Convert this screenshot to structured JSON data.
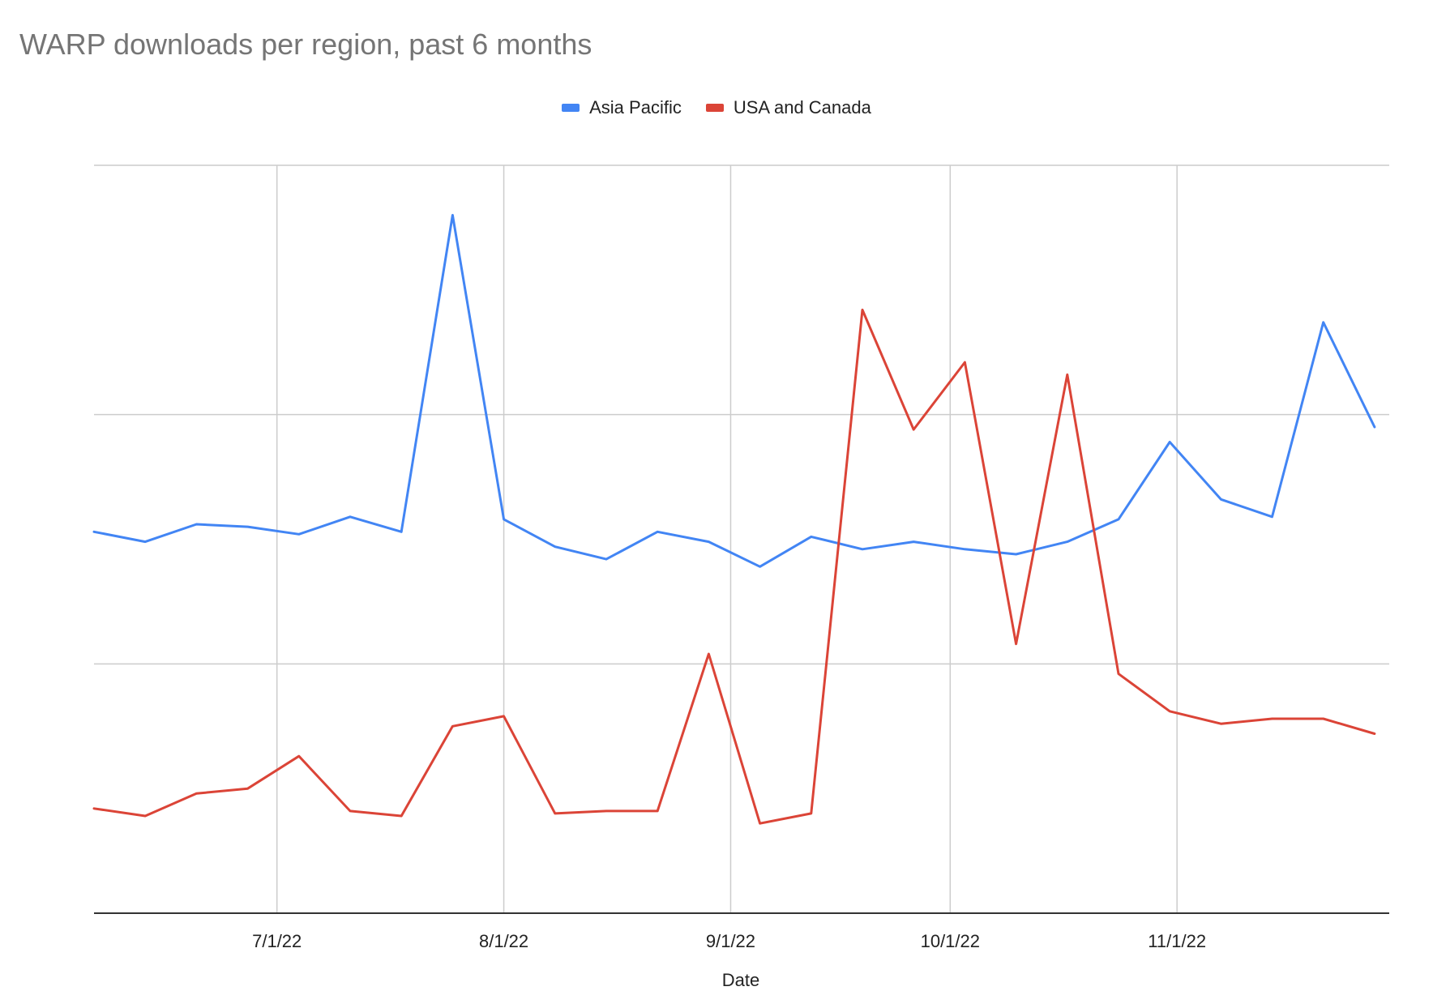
{
  "chart_data": {
    "type": "line",
    "title": "WARP downloads per region, past 6 months",
    "xlabel": "Date",
    "ylabel": "",
    "xlim": [
      "2022-06-06",
      "2022-11-30"
    ],
    "ylim": [
      0,
      3
    ],
    "y_gridlines": [
      1,
      2,
      3
    ],
    "y_tick_labels_shown": false,
    "x_ticks": [
      {
        "date": "2022-07-01",
        "label": "7/1/22"
      },
      {
        "date": "2022-08-01",
        "label": "8/1/22"
      },
      {
        "date": "2022-09-01",
        "label": "9/1/22"
      },
      {
        "date": "2022-10-01",
        "label": "10/1/22"
      },
      {
        "date": "2022-11-01",
        "label": "11/1/22"
      }
    ],
    "grid": true,
    "legend_position": "top",
    "x": [
      "2022-06-06",
      "2022-06-13",
      "2022-06-20",
      "2022-06-27",
      "2022-07-04",
      "2022-07-11",
      "2022-07-18",
      "2022-07-25",
      "2022-08-01",
      "2022-08-08",
      "2022-08-15",
      "2022-08-22",
      "2022-08-29",
      "2022-09-05",
      "2022-09-12",
      "2022-09-19",
      "2022-09-26",
      "2022-10-03",
      "2022-10-10",
      "2022-10-17",
      "2022-10-24",
      "2022-10-31",
      "2022-11-07",
      "2022-11-14",
      "2022-11-21",
      "2022-11-28"
    ],
    "series": [
      {
        "name": "Asia Pacific",
        "color": "#4285f4",
        "values": [
          1.53,
          1.49,
          1.56,
          1.55,
          1.52,
          1.59,
          1.53,
          2.8,
          1.58,
          1.47,
          1.42,
          1.53,
          1.49,
          1.39,
          1.51,
          1.46,
          1.49,
          1.46,
          1.44,
          1.49,
          1.58,
          1.89,
          1.66,
          1.59,
          2.37,
          1.95
        ]
      },
      {
        "name": "USA and Canada",
        "color": "#db4437",
        "values": [
          0.42,
          0.39,
          0.48,
          0.5,
          0.63,
          0.41,
          0.39,
          0.75,
          0.79,
          0.4,
          0.41,
          0.41,
          1.04,
          0.36,
          0.4,
          2.42,
          1.94,
          2.21,
          1.08,
          2.16,
          0.96,
          0.81,
          0.76,
          0.78,
          0.78,
          0.72
        ]
      }
    ]
  }
}
